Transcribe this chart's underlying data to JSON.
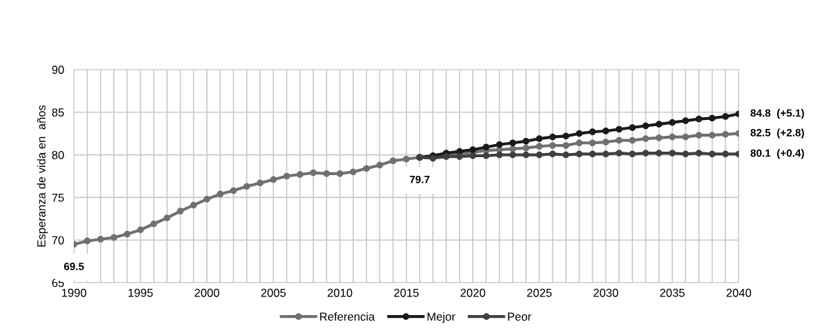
{
  "chart_data": {
    "type": "line",
    "ylabel": "Esperanza de vida en  años",
    "x": [
      1990,
      1991,
      1992,
      1993,
      1994,
      1995,
      1996,
      1997,
      1998,
      1999,
      2000,
      2001,
      2002,
      2003,
      2004,
      2005,
      2006,
      2007,
      2008,
      2009,
      2010,
      2011,
      2012,
      2013,
      2014,
      2015,
      2016,
      2017,
      2018,
      2019,
      2020,
      2021,
      2022,
      2023,
      2024,
      2025,
      2026,
      2027,
      2028,
      2029,
      2030,
      2031,
      2032,
      2033,
      2034,
      2035,
      2036,
      2037,
      2038,
      2039,
      2040
    ],
    "series": [
      {
        "name": "Referencia",
        "color": "#707070",
        "values": [
          69.5,
          69.9,
          70.1,
          70.3,
          70.7,
          71.2,
          71.9,
          72.6,
          73.4,
          74.1,
          74.8,
          75.4,
          75.8,
          76.3,
          76.7,
          77.1,
          77.5,
          77.7,
          77.9,
          77.8,
          77.8,
          78.0,
          78.4,
          78.8,
          79.3,
          79.5,
          79.7,
          79.8,
          79.9,
          80.1,
          80.3,
          80.5,
          80.6,
          80.7,
          80.8,
          81.0,
          81.1,
          81.1,
          81.4,
          81.4,
          81.5,
          81.7,
          81.7,
          81.9,
          82.0,
          82.1,
          82.1,
          82.3,
          82.3,
          82.4,
          82.5
        ]
      },
      {
        "name": "Mejor",
        "color": "#1a1a1a",
        "values": [
          null,
          null,
          null,
          null,
          null,
          null,
          null,
          null,
          null,
          null,
          null,
          null,
          null,
          null,
          null,
          null,
          null,
          null,
          null,
          null,
          null,
          null,
          null,
          null,
          null,
          null,
          79.7,
          79.9,
          80.2,
          80.4,
          80.6,
          80.9,
          81.2,
          81.4,
          81.6,
          81.9,
          82.1,
          82.2,
          82.5,
          82.7,
          82.8,
          83.0,
          83.2,
          83.4,
          83.6,
          83.8,
          84.0,
          84.2,
          84.3,
          84.5,
          84.8
        ]
      },
      {
        "name": "Peor",
        "color": "#404040",
        "values": [
          null,
          null,
          null,
          null,
          null,
          null,
          null,
          null,
          null,
          null,
          null,
          null,
          null,
          null,
          null,
          null,
          null,
          null,
          null,
          null,
          null,
          null,
          null,
          null,
          null,
          null,
          79.7,
          79.6,
          79.8,
          79.8,
          79.9,
          79.9,
          80.0,
          80.0,
          80.0,
          80.0,
          80.1,
          80.0,
          80.1,
          80.1,
          80.1,
          80.2,
          80.1,
          80.2,
          80.2,
          80.2,
          80.1,
          80.2,
          80.1,
          80.1,
          80.1
        ]
      }
    ],
    "xlim": [
      1990,
      2040
    ],
    "ylim": [
      65,
      90
    ],
    "yticks": [
      65,
      70,
      75,
      80,
      85,
      90
    ],
    "xticks": [
      1990,
      {
        "value": 1991,
        "label": null
      },
      {
        "value": 1992,
        "label": null
      },
      {
        "value": 1993,
        "label": null
      },
      {
        "value": 1994,
        "label": null
      },
      1995,
      {
        "value": 1996,
        "label": null
      },
      {
        "value": 1997,
        "label": null
      },
      {
        "value": 1998,
        "label": null
      },
      {
        "value": 1999,
        "label": null
      },
      2000,
      {
        "value": 2001,
        "label": null
      },
      {
        "value": 2002,
        "label": null
      },
      {
        "value": 2003,
        "label": null
      },
      {
        "value": 2004,
        "label": null
      },
      2005,
      {
        "value": 2006,
        "label": null
      },
      {
        "value": 2007,
        "label": null
      },
      {
        "value": 2008,
        "label": null
      },
      {
        "value": 2009,
        "label": null
      },
      2010,
      {
        "value": 2011,
        "label": null
      },
      {
        "value": 2012,
        "label": null
      },
      {
        "value": 2013,
        "label": null
      },
      {
        "value": 2014,
        "label": null
      },
      2015,
      {
        "value": 2016,
        "label": null
      },
      {
        "value": 2017,
        "label": null
      },
      {
        "value": 2018,
        "label": null
      },
      {
        "value": 2019,
        "label": null
      },
      2020,
      {
        "value": 2021,
        "label": null
      },
      {
        "value": 2022,
        "label": null
      },
      {
        "value": 2023,
        "label": null
      },
      {
        "value": 2024,
        "label": null
      },
      2025,
      {
        "value": 2026,
        "label": null
      },
      {
        "value": 2027,
        "label": null
      },
      {
        "value": 2028,
        "label": null
      },
      {
        "value": 2029,
        "label": null
      },
      2030,
      {
        "value": 2031,
        "label": null
      },
      {
        "value": 2032,
        "label": null
      },
      {
        "value": 2033,
        "label": null
      },
      {
        "value": 2034,
        "label": null
      },
      2035,
      {
        "value": 2036,
        "label": null
      },
      {
        "value": 2037,
        "label": null
      },
      {
        "value": 2038,
        "label": null
      },
      {
        "value": 2039,
        "label": null
      },
      2040
    ],
    "annotations": [
      {
        "text": "69.5",
        "x": 1990,
        "y": 69.5
      },
      {
        "text": "79.7",
        "x": 2016,
        "y": 79.7
      },
      {
        "text": "84.8  (+5.1)",
        "x": 2040,
        "y": 84.8
      },
      {
        "text": "82.5  (+2.8)",
        "x": 2040,
        "y": 82.5
      },
      {
        "text": "80.1  (+0.4)",
        "x": 2040,
        "y": 80.1
      }
    ],
    "grid": true,
    "legend": "bottom",
    "marker": "circle",
    "line_style": "solid"
  }
}
